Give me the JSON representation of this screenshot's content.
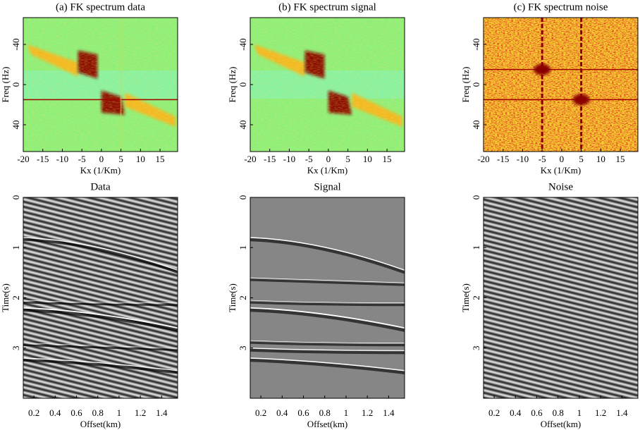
{
  "chart_data": [
    {
      "type": "image",
      "title": "(a) FK spectrum data",
      "xlabel": "Kx (1/Km)",
      "ylabel": "Freq (Hz)",
      "xlim": [
        -20,
        19.5
      ],
      "ylim": [
        -66.7,
        66.7
      ],
      "y_inverted": true,
      "xticks": [
        -20,
        -15,
        -10,
        -5,
        0,
        5,
        10,
        15
      ],
      "yticks": [
        -40,
        0,
        40
      ]
    },
    {
      "type": "image",
      "title": "(b) FK spectrum signal",
      "xlabel": "Kx (1/Km)",
      "ylabel": "Freq (Hz)",
      "xlim": [
        -20,
        19.5
      ],
      "ylim": [
        -66.7,
        66.7
      ],
      "y_inverted": true,
      "xticks": [
        -20,
        -15,
        -10,
        -5,
        0,
        5,
        10,
        15
      ],
      "yticks": [
        -40,
        0,
        40
      ]
    },
    {
      "type": "image",
      "title": "(c) FK spectrum noise",
      "xlabel": "Kx (1/Km)",
      "ylabel": "Freq (Hz)",
      "xlim": [
        -20,
        19.5
      ],
      "ylim": [
        -66.7,
        66.7
      ],
      "y_inverted": true,
      "xticks": [
        -20,
        -15,
        -10,
        -5,
        0,
        5,
        10,
        15
      ],
      "yticks": [
        -40,
        0,
        40
      ]
    },
    {
      "type": "image",
      "title": "Data",
      "xlabel": "Offset(km)",
      "ylabel": "Time(s)",
      "xlim": [
        0.1,
        1.55
      ],
      "ylim": [
        0,
        4
      ],
      "y_inverted": true,
      "xticks": [
        0.2,
        0.4,
        0.6,
        0.8,
        1,
        1.2,
        1.4
      ],
      "yticks": [
        0,
        1,
        2,
        3
      ]
    },
    {
      "type": "image",
      "title": "Signal",
      "xlabel": "Offset(km)",
      "ylabel": "Time(s)",
      "xlim": [
        0.1,
        1.55
      ],
      "ylim": [
        0,
        4
      ],
      "y_inverted": true,
      "xticks": [
        0.2,
        0.4,
        0.6,
        0.8,
        1,
        1.2,
        1.4
      ],
      "yticks": [
        0,
        1,
        2,
        3
      ]
    },
    {
      "type": "image",
      "title": "Noise",
      "xlabel": "Offset(km)",
      "ylabel": "Time(s)",
      "xlim": [
        0.1,
        1.55
      ],
      "ylim": [
        0,
        4
      ],
      "y_inverted": true,
      "xticks": [
        0.2,
        0.4,
        0.6,
        0.8,
        1,
        1.2,
        1.4
      ],
      "yticks": [
        0,
        1,
        2,
        3
      ]
    }
  ]
}
